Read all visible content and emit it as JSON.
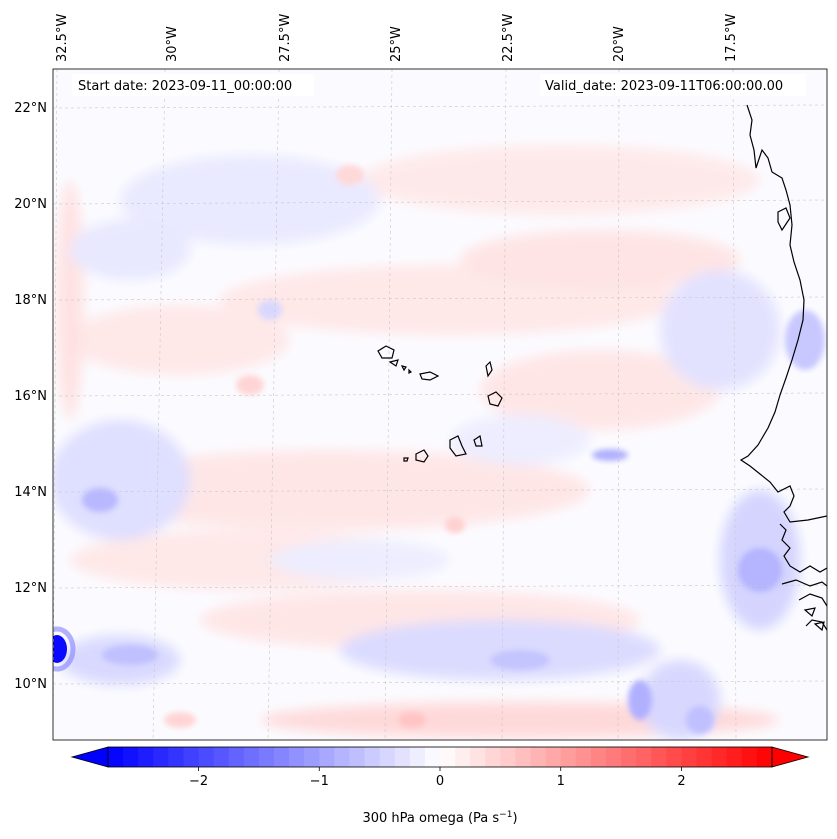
{
  "map": {
    "start_date_label": "Start date: 2023-09-11_00:00:00",
    "valid_date_label": "Valid_date: 2023-09-11T06:00:00.00",
    "longitude_labels": [
      "32.5°W",
      "30°W",
      "27.5°W",
      "25°W",
      "22.5°W",
      "20°W",
      "17.5°W"
    ],
    "latitude_labels": [
      "22°N",
      "20°N",
      "18°N",
      "16°N",
      "14°N",
      "12°N",
      "10°N"
    ],
    "field": "300 hPa omega",
    "background_color": "#fbfbff",
    "coastline_color": "#000000"
  },
  "colorbar": {
    "label_text": "300 hPa omega (Pa s",
    "label_exponent": "−1",
    "label_close": ")",
    "tick_labels": [
      "−2",
      "−1",
      "0",
      "1",
      "2"
    ],
    "tick_values": [
      -2,
      -1,
      0,
      1,
      2
    ],
    "range": [
      -2.75,
      2.75
    ],
    "colormap": "bwr",
    "color_low": "#0000ff",
    "color_mid": "#ffffff",
    "color_high": "#ff0000",
    "extend": "both"
  }
}
